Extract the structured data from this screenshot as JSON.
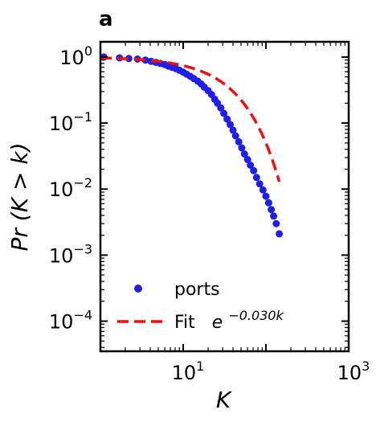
{
  "chart_data": {
    "type": "scatter",
    "panel_label": "a",
    "xlabel": "K",
    "ylabel": "Pr (K > k)",
    "x_scale": "log",
    "y_scale": "log",
    "xlim": [
      1,
      1000
    ],
    "ylim": [
      3.5e-05,
      1.7
    ],
    "x_ticks": [
      {
        "value": 10,
        "base": "10",
        "exp": "1"
      },
      {
        "value": 1000,
        "base": "10",
        "exp": "3"
      }
    ],
    "y_ticks": [
      {
        "value": 1,
        "base": "10",
        "exp": "0"
      },
      {
        "value": 0.1,
        "base": "10",
        "exp": "−1"
      },
      {
        "value": 0.01,
        "base": "10",
        "exp": "−2"
      },
      {
        "value": 0.001,
        "base": "10",
        "exp": "−3"
      },
      {
        "value": 0.0001,
        "base": "10",
        "exp": "−4"
      }
    ],
    "legend_position": "lower-left",
    "series": [
      {
        "name": "ports",
        "kind": "scatter",
        "color": "#1f1fe6",
        "points": [
          [
            1.1,
            1.0
          ],
          [
            1.7,
            0.97
          ],
          [
            2.2,
            0.95
          ],
          [
            2.8,
            0.93
          ],
          [
            3.5,
            0.9
          ],
          [
            4.1,
            0.86
          ],
          [
            4.7,
            0.83
          ],
          [
            5.3,
            0.8
          ],
          [
            6.0,
            0.77
          ],
          [
            6.6,
            0.73
          ],
          [
            7.3,
            0.7
          ],
          [
            8.1,
            0.67
          ],
          [
            9.0,
            0.63
          ],
          [
            10.0,
            0.59
          ],
          [
            11.0,
            0.55
          ],
          [
            12.2,
            0.51
          ],
          [
            13.5,
            0.47
          ],
          [
            15.0,
            0.43
          ],
          [
            16.5,
            0.39
          ],
          [
            18.0,
            0.35
          ],
          [
            20.0,
            0.31
          ],
          [
            22.0,
            0.27
          ],
          [
            24.0,
            0.23
          ],
          [
            26.0,
            0.2
          ],
          [
            28.5,
            0.17
          ],
          [
            31.0,
            0.14
          ],
          [
            34.0,
            0.115
          ],
          [
            37.0,
            0.095
          ],
          [
            40.0,
            0.078
          ],
          [
            43.0,
            0.064
          ],
          [
            47.0,
            0.052
          ],
          [
            51.0,
            0.042
          ],
          [
            55.0,
            0.034
          ],
          [
            60.0,
            0.028
          ],
          [
            65.0,
            0.023
          ],
          [
            71.0,
            0.019
          ],
          [
            77.0,
            0.015
          ],
          [
            84.0,
            0.012
          ],
          [
            92.0,
            0.0097
          ],
          [
            100.0,
            0.0078
          ],
          [
            108.0,
            0.0062
          ],
          [
            116.0,
            0.0049
          ],
          [
            124.0,
            0.0039
          ],
          [
            133.0,
            0.003
          ],
          [
            145.0,
            0.0021
          ]
        ]
      },
      {
        "name": "Fit",
        "formula_base": "e",
        "formula_exp": "−0.030k",
        "kind": "line",
        "style": "dashed",
        "color": "#ee1111",
        "rate": 0.03,
        "x_range": [
          1,
          145
        ]
      }
    ]
  }
}
